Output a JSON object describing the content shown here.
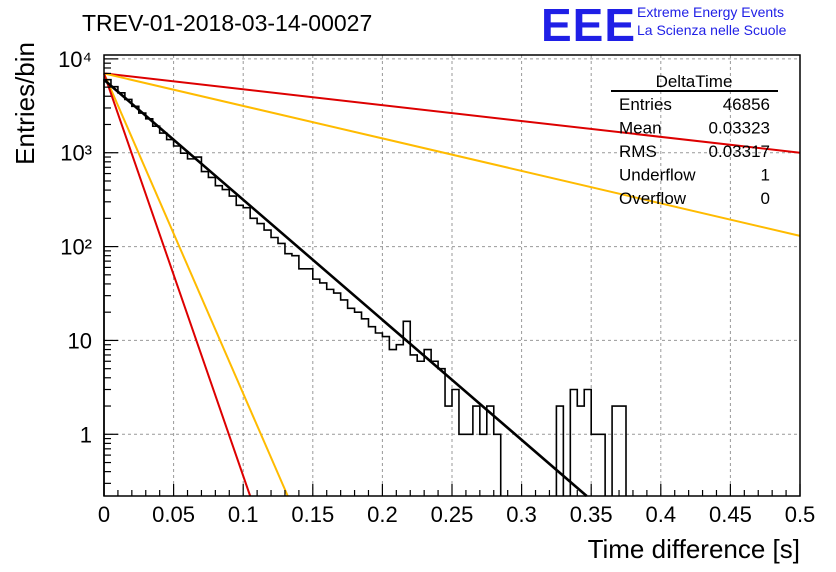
{
  "header": {
    "title": "TREV-01-2018-03-14-00027",
    "logo": "EEE",
    "logo_line1": "Extreme Energy Events",
    "logo_line2": "La Scienza nelle Scuole"
  },
  "stats": {
    "name": "DeltaTime",
    "rows": [
      {
        "label": "Entries",
        "value": "46856"
      },
      {
        "label": "Mean",
        "value": "0.03323"
      },
      {
        "label": "RMS",
        "value": "0.03317"
      },
      {
        "label": "Underflow",
        "value": "1"
      },
      {
        "label": "Overflow",
        "value": "0"
      }
    ]
  },
  "colors": {
    "histogram": "#000000",
    "fit": "#000000",
    "red_curves": "#dd0000",
    "orange_curves": "#ffbb00",
    "grid": "#999999"
  },
  "chart_data": {
    "type": "line",
    "log_y": true,
    "grid": true,
    "legend": "top-right",
    "xlabel": "Time difference [s]",
    "ylabel": "Entries/bin",
    "xlim": [
      0,
      0.5
    ],
    "ylim": [
      0.22,
      11000
    ],
    "x_ticks": [
      0,
      0.05,
      0.1,
      0.15,
      0.2,
      0.25,
      0.3,
      0.35,
      0.4,
      0.45,
      0.5
    ],
    "x_tick_labels": [
      "0",
      "0.05",
      "0.1",
      "0.15",
      "0.2",
      "0.25",
      "0.3",
      "0.35",
      "0.4",
      "0.45",
      "0.5"
    ],
    "y_ticks": [
      1,
      10,
      100,
      1000,
      10000
    ],
    "y_tick_labels": [
      "1",
      "10",
      "10²",
      "10³",
      "10⁴"
    ],
    "histogram": {
      "bin_width": 0.005,
      "values": [
        6000,
        5050,
        4350,
        3700,
        3120,
        2650,
        2300,
        1920,
        1620,
        1380,
        1180,
        990,
        860,
        900,
        630,
        545,
        445,
        405,
        345,
        275,
        260,
        200,
        176,
        150,
        125,
        108,
        84,
        80,
        58,
        58,
        45,
        41,
        35,
        32,
        27,
        22,
        20,
        17,
        14,
        12,
        11,
        8,
        9,
        16,
        7,
        6,
        8,
        6,
        5,
        2,
        3,
        1,
        1,
        2,
        1,
        2,
        1,
        0,
        0,
        0,
        0,
        0,
        0,
        0,
        0,
        2,
        0,
        3,
        2,
        3,
        1,
        1,
        0,
        2,
        2,
        0,
        0,
        0,
        0,
        0,
        0,
        0,
        0,
        0,
        0,
        0,
        0,
        0,
        0,
        0,
        0,
        0,
        0,
        0,
        0,
        0,
        0,
        0,
        0,
        0
      ]
    },
    "curves": [
      {
        "color": "black",
        "type": "fit",
        "x": [
          0,
          0.35
        ],
        "y": [
          6000,
          0.2
        ]
      },
      {
        "color": "red",
        "x": [
          0,
          0.5
        ],
        "y": [
          7000,
          1000
        ]
      },
      {
        "color": "orange",
        "x": [
          0,
          0.5
        ],
        "y": [
          7000,
          130
        ]
      },
      {
        "color": "orange",
        "x": [
          0,
          0.132
        ],
        "y": [
          7000,
          0.22
        ]
      },
      {
        "color": "red",
        "x": [
          0,
          0.105
        ],
        "y": [
          7000,
          0.22
        ]
      }
    ]
  }
}
